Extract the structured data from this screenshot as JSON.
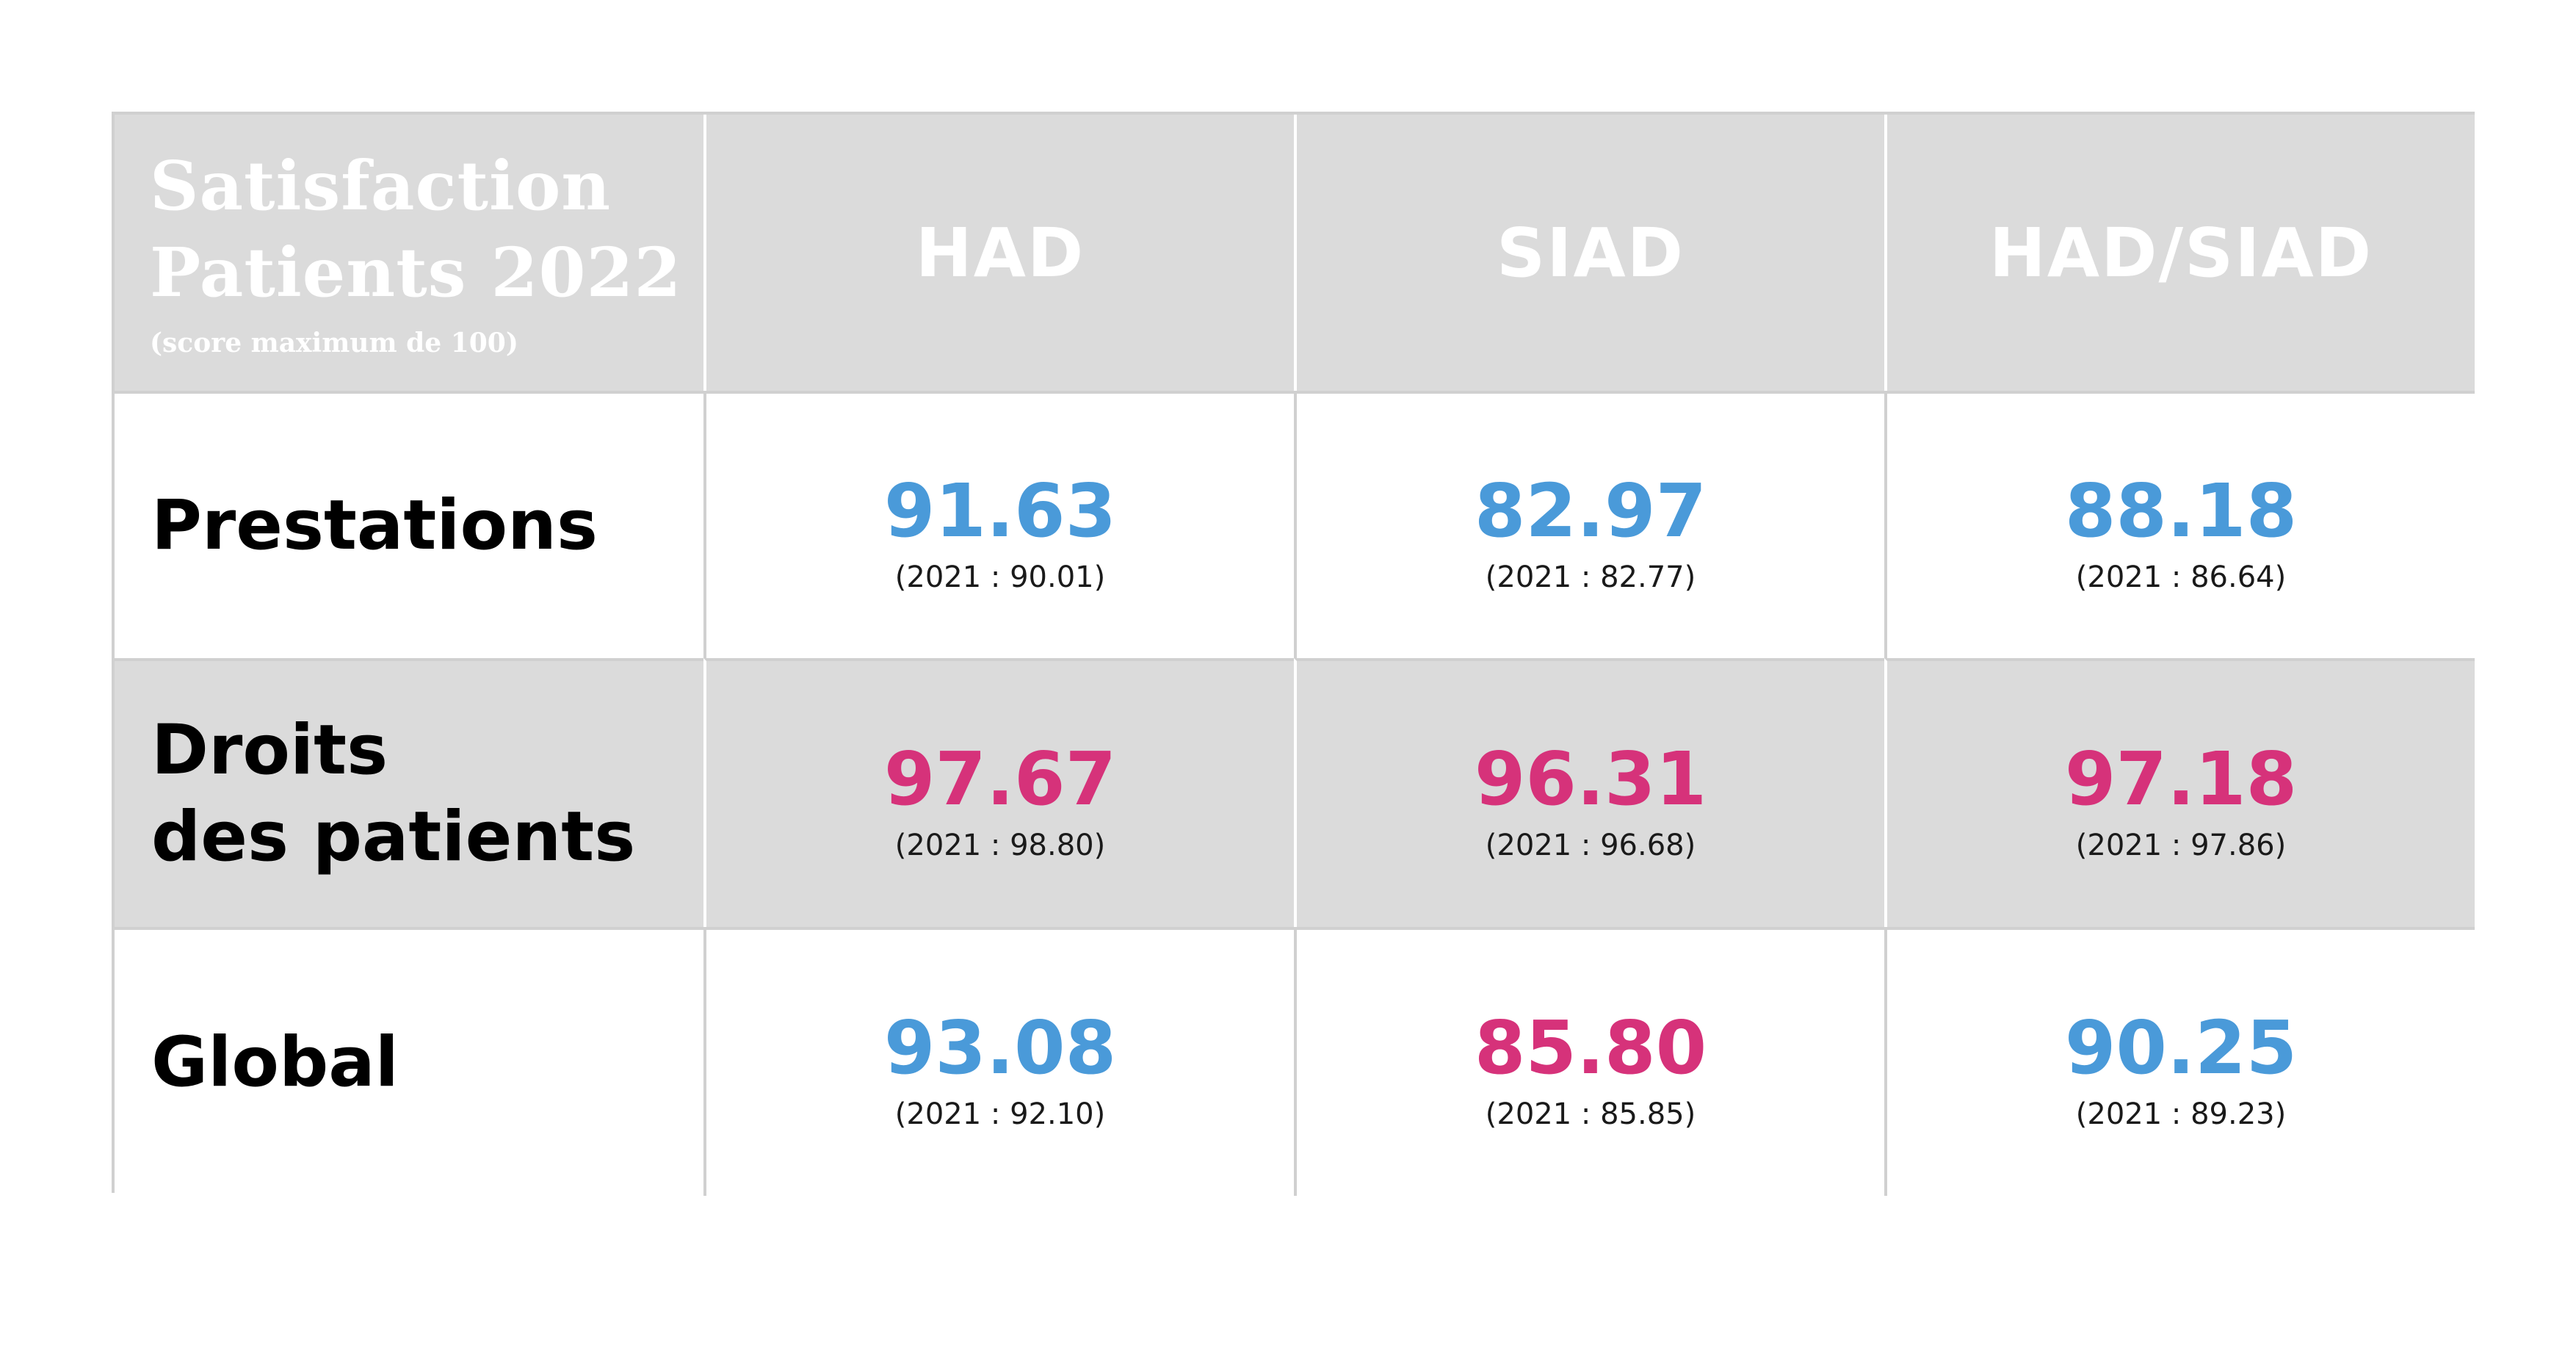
{
  "colors": {
    "blue": "#4a9ad9",
    "pink": "#d6327a",
    "header_bg": "#dbdbdb",
    "border": "#d0d0d0"
  },
  "header": {
    "title_line1": "Satisfaction",
    "title_line2": "Patients 2022",
    "subtitle": "(score maximum de 100)",
    "columns": [
      "HAD",
      "SIAD",
      "HAD/SIAD"
    ]
  },
  "rows": [
    {
      "label_line1": "Prestations",
      "label_line2": "",
      "cells": [
        {
          "value": "91.63",
          "previous": "(2021 : 90.01)",
          "color": "#4a9ad9"
        },
        {
          "value": "82.97",
          "previous": "(2021 : 82.77)",
          "color": "#4a9ad9"
        },
        {
          "value": "88.18",
          "previous": "(2021 : 86.64)",
          "color": "#4a9ad9"
        }
      ]
    },
    {
      "label_line1": "Droits",
      "label_line2": "des patients",
      "cells": [
        {
          "value": "97.67",
          "previous": "(2021 : 98.80)",
          "color": "#d6327a"
        },
        {
          "value": "96.31",
          "previous": "(2021 : 96.68)",
          "color": "#d6327a"
        },
        {
          "value": "97.18",
          "previous": "(2021 : 97.86)",
          "color": "#d6327a"
        }
      ]
    },
    {
      "label_line1": "Global",
      "label_line2": "",
      "cells": [
        {
          "value": "93.08",
          "previous": "(2021 : 92.10)",
          "color": "#4a9ad9"
        },
        {
          "value": "85.80",
          "previous": "(2021 : 85.85)",
          "color": "#d6327a"
        },
        {
          "value": "90.25",
          "previous": "(2021 : 89.23)",
          "color": "#4a9ad9"
        }
      ]
    }
  ]
}
